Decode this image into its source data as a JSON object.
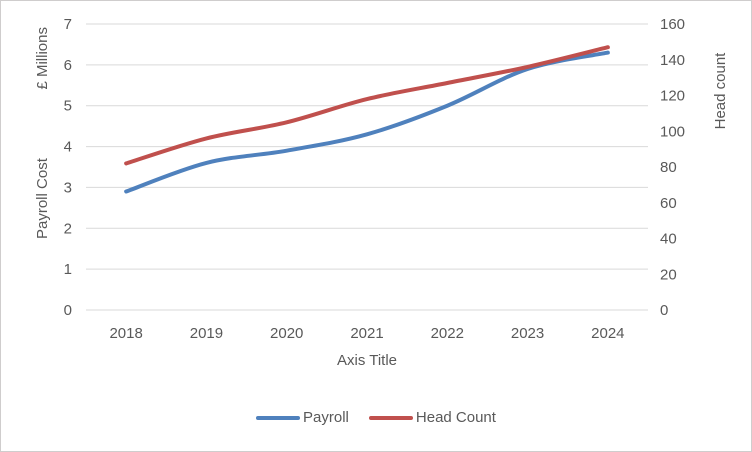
{
  "chart_data": {
    "type": "line",
    "smoothed": true,
    "x_categories": [
      "2018",
      "2019",
      "2020",
      "2021",
      "2022",
      "2023",
      "2024"
    ],
    "series": [
      {
        "name": "Payroll",
        "axis": "left",
        "color": "#4F81BD",
        "values": [
          2.9,
          3.6,
          3.9,
          4.3,
          5.0,
          5.9,
          6.3
        ]
      },
      {
        "name": "Head Count",
        "axis": "right",
        "color": "#C0504D",
        "values": [
          82,
          96,
          105,
          118,
          127,
          136,
          147
        ]
      }
    ],
    "xlabel": "Axis Title",
    "ylabel_left_part1": "Payroll Cost",
    "ylabel_left_part2": "£ Millions",
    "ylabel_right": "Head count",
    "left_axis": {
      "min": 0,
      "max": 7,
      "step": 1
    },
    "right_axis": {
      "min": 0,
      "max": 160,
      "step": 20
    },
    "grid": true,
    "legend_position": "bottom"
  },
  "styles": {
    "text_color": "#595959",
    "grid_color": "#D9D9D9",
    "background": "#FFFFFF",
    "frame_border": "#CFCDCD"
  }
}
